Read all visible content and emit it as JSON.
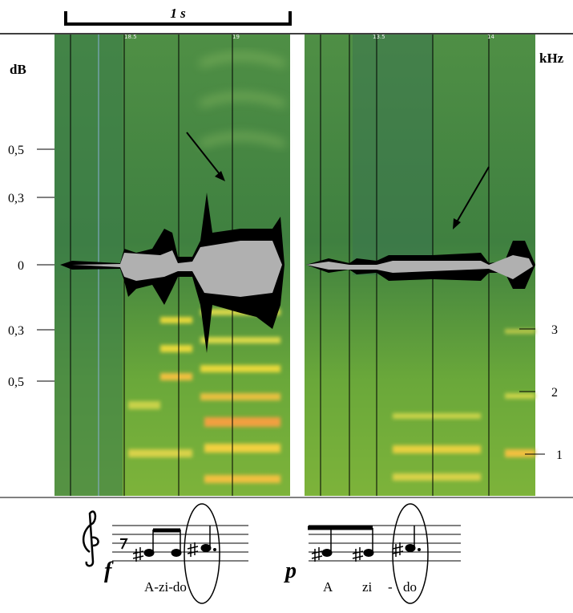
{
  "scale_bar": "1 s",
  "left_axis": {
    "label": "dB",
    "ticks": [
      "0,5",
      "0,3",
      "0",
      "0,3",
      "0,5"
    ]
  },
  "right_axis": {
    "label": "kHz",
    "ticks": [
      "3",
      "2",
      "1"
    ]
  },
  "panels": [
    {
      "time_marks": [
        "18.5",
        "19"
      ],
      "dynamic": "f",
      "lyrics": [
        "A-zi-do"
      ]
    },
    {
      "time_marks": [
        "13.5",
        "14"
      ],
      "dynamic": "p",
      "lyrics": [
        "A",
        "zi",
        "-",
        "do"
      ]
    }
  ]
}
